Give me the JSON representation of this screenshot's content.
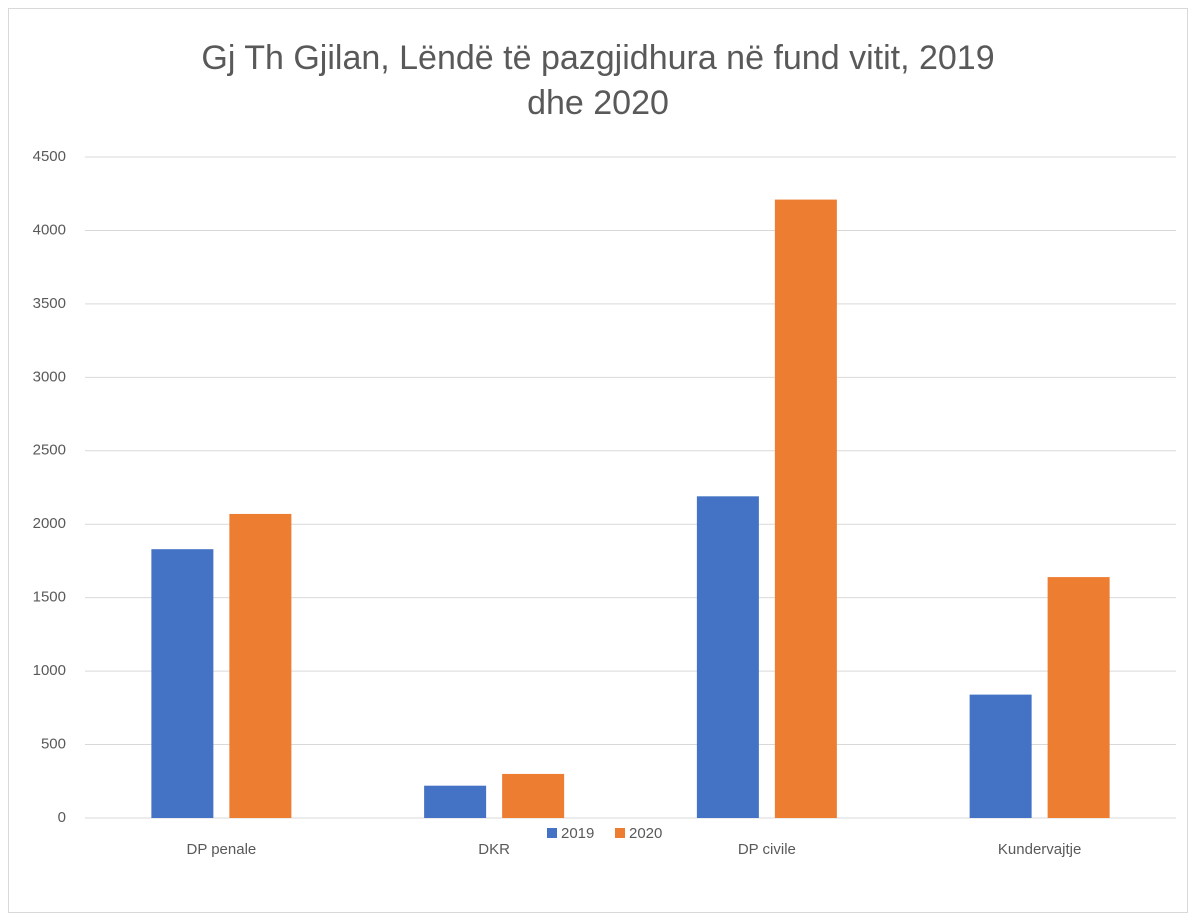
{
  "chart_data": {
    "type": "bar",
    "title": "Gj Th Gjilan, Lëndë të pazgjidhura në fund vitit, 2019 dhe 2020",
    "categories": [
      "DP penale",
      "DKR",
      "DP civile",
      "Kundervajtje"
    ],
    "series": [
      {
        "name": "2019",
        "color": "#4472c4",
        "values": [
          1830,
          220,
          2190,
          840
        ]
      },
      {
        "name": "2020",
        "color": "#ed7d31",
        "values": [
          2070,
          300,
          4210,
          1640
        ]
      }
    ],
    "ylim": [
      0,
      4500
    ],
    "yticks": [
      0,
      500,
      1000,
      1500,
      2000,
      2500,
      3000,
      3500,
      4000,
      4500
    ],
    "grid": true,
    "legend": "bottom"
  }
}
